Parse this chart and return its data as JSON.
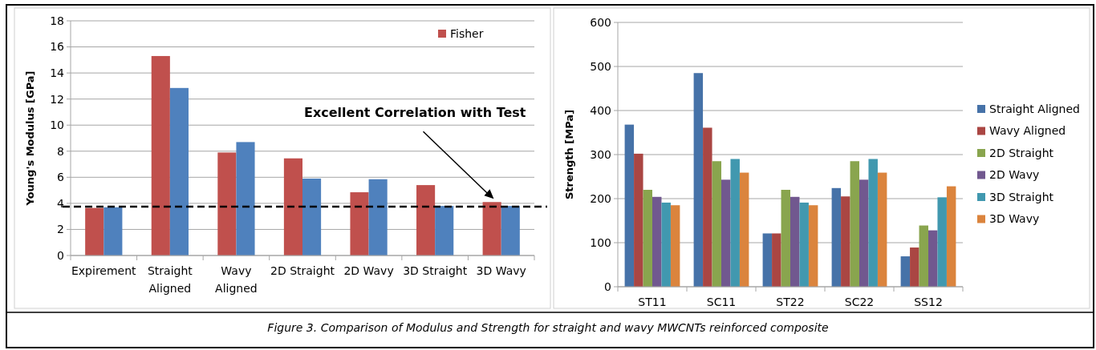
{
  "chart_data": [
    {
      "type": "bar",
      "ylabel": "Young's Modulus [GPa]",
      "categories": [
        "Expirement",
        "Straight Aligned",
        "Wavy Aligned",
        "2D Straight",
        "2D Wavy",
        "3D Straight",
        "3D Wavy"
      ],
      "series": [
        {
          "name": "Fisher",
          "color": "#c0504d",
          "values": [
            3.65,
            15.3,
            7.9,
            7.45,
            4.85,
            5.4,
            4.1
          ]
        },
        {
          "color": "#4f81bd",
          "values": [
            3.7,
            12.85,
            8.7,
            5.9,
            5.85,
            3.8,
            3.8
          ]
        }
      ],
      "ylim": [
        0,
        18
      ],
      "yticks": [
        0,
        2,
        4,
        6,
        8,
        10,
        12,
        14,
        16,
        18
      ],
      "grid": "y",
      "legend": "top right",
      "ref_lines": [
        {
          "axis": "y",
          "value": 3.75,
          "color": "#000000",
          "line_style": "dashed"
        }
      ],
      "annotations": [
        "Excellent Correlation with Test",
        "Figure 3.  Comparison of Modulus and Strength for straight and wavy MWCNTs reinforced composite"
      ]
    },
    {
      "type": "bar",
      "ylabel": "Strength [MPa]",
      "categories": [
        "ST11",
        "SC11",
        "ST22",
        "SC22",
        "SS12"
      ],
      "series": [
        {
          "name": "Straight Aligned",
          "color": "#4672a8",
          "values": [
            368,
            485,
            121,
            224,
            69
          ]
        },
        {
          "name": "Wavy Aligned",
          "color": "#aa4643",
          "values": [
            302,
            361,
            121,
            205,
            89
          ]
        },
        {
          "name": "2D Straight",
          "color": "#89a54e",
          "values": [
            220,
            285,
            220,
            285,
            139
          ]
        },
        {
          "name": "2D Wavy",
          "color": "#71588f",
          "values": [
            204,
            243,
            204,
            243,
            128
          ]
        },
        {
          "name": "3D Straight",
          "color": "#4198af",
          "values": [
            191,
            290,
            191,
            290,
            203
          ]
        },
        {
          "name": "3D Wavy",
          "color": "#db843d",
          "values": [
            185,
            259,
            185,
            259,
            228
          ]
        }
      ],
      "ylim": [
        0,
        600
      ],
      "yticks": [
        0,
        100,
        200,
        300,
        400,
        500,
        600
      ],
      "grid": "y",
      "legend": "right"
    }
  ]
}
